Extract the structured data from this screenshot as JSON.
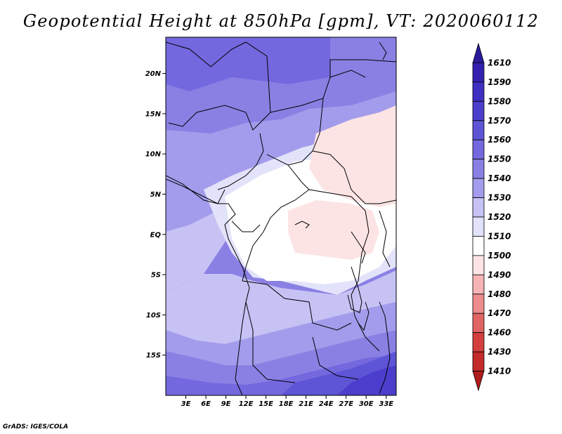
{
  "title": "Geopotential Height at 850hPa [gpm], VT: 2020060112",
  "footer": "GrADS: IGES/COLA",
  "map": {
    "lon_range": [
      0,
      34.5
    ],
    "lat_range": [
      -20,
      24.5
    ],
    "lon_ticks": [
      "3E",
      "6E",
      "9E",
      "12E",
      "15E",
      "18E",
      "21E",
      "24E",
      "27E",
      "30E",
      "33E"
    ],
    "lat_ticks": [
      "20N",
      "15N",
      "10N",
      "5N",
      "EQ",
      "5S",
      "10S",
      "15S"
    ],
    "tick_positions": {
      "lon": [
        3,
        6,
        9,
        12,
        15,
        18,
        21,
        24,
        27,
        30,
        33
      ],
      "lat": [
        20,
        15,
        10,
        5,
        0,
        -5,
        -10,
        -15
      ]
    }
  },
  "colorbar": {
    "labels": [
      "1610",
      "1590",
      "1580",
      "1570",
      "1560",
      "1550",
      "1540",
      "1530",
      "1520",
      "1510",
      "1500",
      "1490",
      "1480",
      "1470",
      "1460",
      "1430",
      "1410"
    ],
    "colors": [
      "#2a1a9a",
      "#3420b0",
      "#3f2ec2",
      "#4c3ecc",
      "#5e54d6",
      "#7468de",
      "#8a80e4",
      "#a39cec",
      "#c6c2f4",
      "#e2e2fa",
      "#ffffff",
      "#fde4e4",
      "#f6b4b4",
      "#ec8c8c",
      "#e06464",
      "#d43e3e",
      "#c32a2a",
      "#b01c1c"
    ]
  }
}
